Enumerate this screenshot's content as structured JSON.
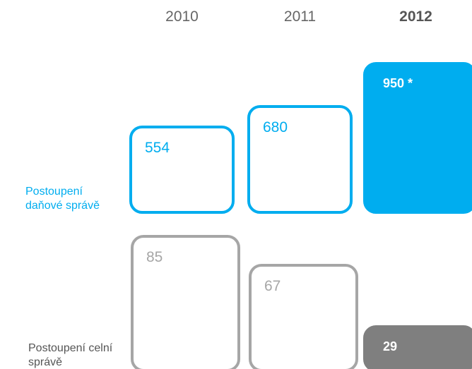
{
  "chart_data": [
    {
      "type": "bar",
      "label": "Postoupení daňové správě",
      "categories": [
        "2010",
        "2011",
        "2012"
      ],
      "values": [
        554,
        680,
        950
      ],
      "value_labels": [
        "554",
        "680",
        "950 *"
      ],
      "color": "#00adef"
    },
    {
      "type": "bar",
      "label": "Postoupení celní správě",
      "values": [
        85,
        67,
        29
      ],
      "value_labels": [
        "85",
        "67",
        "29"
      ],
      "color": "#a6a6a6",
      "last_color": "#7f7f7f"
    }
  ]
}
